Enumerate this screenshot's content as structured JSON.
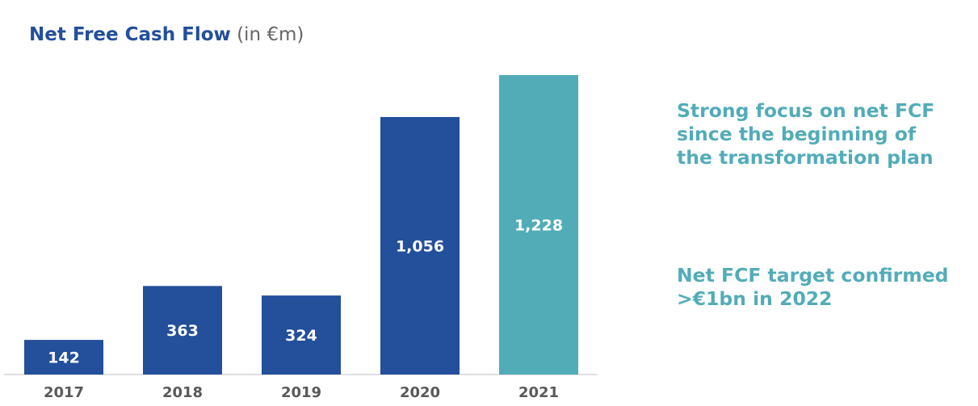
{
  "title": {
    "main": "Net Free Cash Flow",
    "unit": "(in €m)"
  },
  "chart_data": {
    "type": "bar",
    "categories": [
      "2017",
      "2018",
      "2019",
      "2020",
      "2021"
    ],
    "values": [
      142,
      363,
      324,
      1056,
      1228
    ],
    "data_labels": [
      "142",
      "363",
      "324",
      "1,056",
      "1,228"
    ],
    "colors": [
      "#234f9b",
      "#234f9b",
      "#234f9b",
      "#234f9b",
      "#52acb8"
    ],
    "ylim": [
      0,
      1228
    ]
  },
  "notes": [
    {
      "lines": [
        "Strong focus on net FCF",
        "since the beginning of",
        "the transformation plan"
      ]
    },
    {
      "lines": [
        "Net FCF target confirmed",
        ">€1bn in 2022"
      ]
    }
  ],
  "colors": {
    "primary": "#234f9b",
    "accent": "#52acb8",
    "axis": "#bfbfbf",
    "tick": "#595959"
  }
}
